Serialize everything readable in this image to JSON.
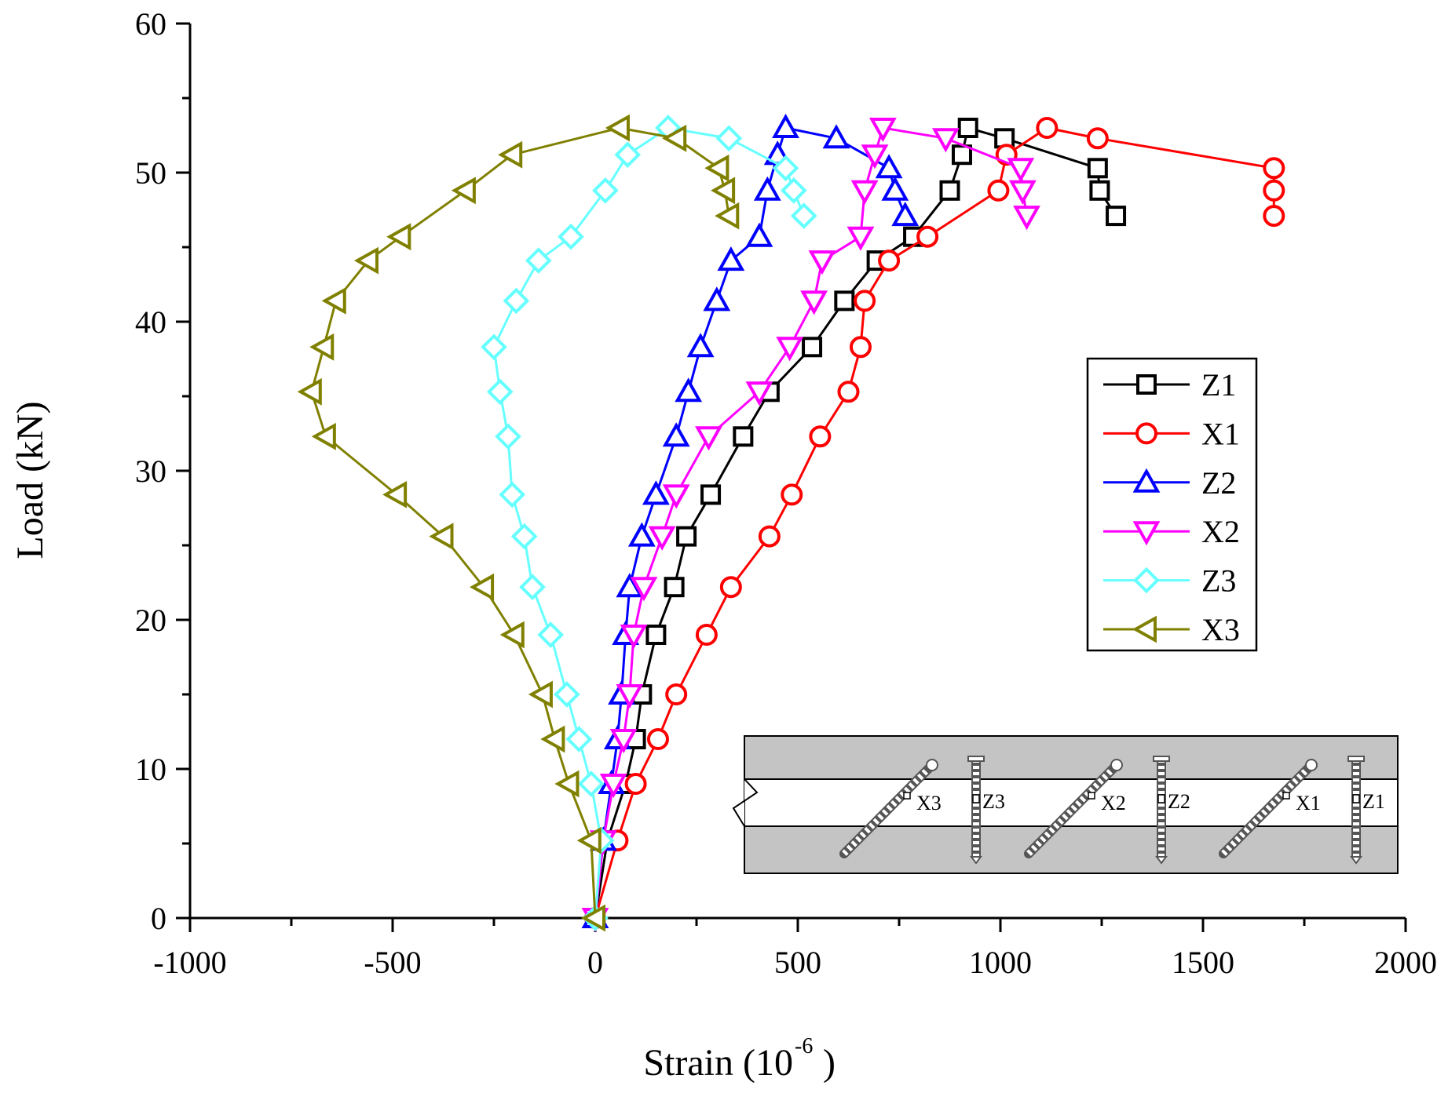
{
  "chart_data": {
    "type": "line",
    "title": "",
    "xlabel": "Strain (10",
    "xlabel_sup": "-6",
    "xlabel_suffix": ")",
    "ylabel": "Load (kN)",
    "xlim": [
      -1000,
      2000
    ],
    "ylim": [
      0,
      60
    ],
    "xticks": [
      -1000,
      -500,
      0,
      500,
      1000,
      1500,
      2000
    ],
    "yticks": [
      0,
      10,
      20,
      30,
      40,
      50,
      60
    ],
    "legend_position": "right",
    "grid": false,
    "series": [
      {
        "name": "Z1",
        "color": "#000000",
        "marker": "square",
        "points": [
          [
            0,
            0
          ],
          [
            30,
            5.2
          ],
          [
            75,
            9
          ],
          [
            100,
            12
          ],
          [
            115,
            15
          ],
          [
            150,
            19
          ],
          [
            195,
            22.2
          ],
          [
            225,
            25.6
          ],
          [
            285,
            28.4
          ],
          [
            365,
            32.3
          ],
          [
            430,
            35.3
          ],
          [
            535,
            38.3
          ],
          [
            615,
            41.4
          ],
          [
            695,
            44.1
          ],
          [
            785,
            45.7
          ],
          [
            875,
            48.8
          ],
          [
            905,
            51.2
          ],
          [
            920,
            53
          ],
          [
            1010,
            52.3
          ],
          [
            1240,
            50.3
          ],
          [
            1245,
            48.8
          ],
          [
            1285,
            47.1
          ]
        ]
      },
      {
        "name": "X1",
        "color": "#ff0000",
        "marker": "circle",
        "points": [
          [
            0,
            0
          ],
          [
            55,
            5.2
          ],
          [
            100,
            9
          ],
          [
            155,
            12
          ],
          [
            200,
            15
          ],
          [
            275,
            19
          ],
          [
            335,
            22.2
          ],
          [
            430,
            25.6
          ],
          [
            485,
            28.4
          ],
          [
            555,
            32.3
          ],
          [
            625,
            35.3
          ],
          [
            655,
            38.3
          ],
          [
            665,
            41.4
          ],
          [
            725,
            44.1
          ],
          [
            820,
            45.7
          ],
          [
            995,
            48.8
          ],
          [
            1015,
            51.2
          ],
          [
            1115,
            53
          ],
          [
            1240,
            52.3
          ],
          [
            1675,
            50.3
          ],
          [
            1675,
            48.8
          ],
          [
            1675,
            47.1
          ]
        ]
      },
      {
        "name": "Z2",
        "color": "#0000ff",
        "marker": "triangle-up",
        "points": [
          [
            0,
            0
          ],
          [
            20,
            5.2
          ],
          [
            40,
            9
          ],
          [
            55,
            12
          ],
          [
            65,
            15
          ],
          [
            75,
            19
          ],
          [
            85,
            22.2
          ],
          [
            115,
            25.6
          ],
          [
            150,
            28.4
          ],
          [
            200,
            32.3
          ],
          [
            230,
            35.3
          ],
          [
            260,
            38.3
          ],
          [
            300,
            41.4
          ],
          [
            335,
            44.1
          ],
          [
            405,
            45.7
          ],
          [
            425,
            48.8
          ],
          [
            450,
            51.2
          ],
          [
            470,
            53
          ],
          [
            595,
            52.3
          ],
          [
            725,
            50.3
          ],
          [
            740,
            48.8
          ],
          [
            765,
            47.1
          ]
        ]
      },
      {
        "name": "X2",
        "color": "#ff00ff",
        "marker": "triangle-down",
        "points": [
          [
            0,
            0
          ],
          [
            20,
            5.2
          ],
          [
            45,
            9
          ],
          [
            70,
            12
          ],
          [
            85,
            15
          ],
          [
            95,
            19
          ],
          [
            120,
            22.2
          ],
          [
            165,
            25.6
          ],
          [
            200,
            28.4
          ],
          [
            280,
            32.3
          ],
          [
            405,
            35.3
          ],
          [
            480,
            38.3
          ],
          [
            540,
            41.4
          ],
          [
            560,
            44.1
          ],
          [
            655,
            45.7
          ],
          [
            665,
            48.8
          ],
          [
            690,
            51.2
          ],
          [
            710,
            53
          ],
          [
            865,
            52.3
          ],
          [
            1050,
            50.3
          ],
          [
            1055,
            48.8
          ],
          [
            1065,
            47.1
          ]
        ]
      },
      {
        "name": "Z3",
        "color": "#66ffff",
        "marker": "diamond",
        "points": [
          [
            0,
            0
          ],
          [
            15,
            5.2
          ],
          [
            -10,
            9
          ],
          [
            -40,
            12
          ],
          [
            -70,
            15
          ],
          [
            -110,
            19
          ],
          [
            -155,
            22.2
          ],
          [
            -175,
            25.6
          ],
          [
            -205,
            28.4
          ],
          [
            -215,
            32.3
          ],
          [
            -235,
            35.3
          ],
          [
            -250,
            38.3
          ],
          [
            -195,
            41.4
          ],
          [
            -140,
            44.1
          ],
          [
            -60,
            45.7
          ],
          [
            25,
            48.8
          ],
          [
            80,
            51.2
          ],
          [
            180,
            53
          ],
          [
            330,
            52.3
          ],
          [
            470,
            50.3
          ],
          [
            490,
            48.8
          ],
          [
            515,
            47.1
          ]
        ]
      },
      {
        "name": "X3",
        "color": "#808000",
        "marker": "triangle-left",
        "points": [
          [
            0,
            0
          ],
          [
            -10,
            5.2
          ],
          [
            -65,
            9
          ],
          [
            -100,
            12
          ],
          [
            -130,
            15
          ],
          [
            -200,
            19
          ],
          [
            -275,
            22.2
          ],
          [
            -375,
            25.6
          ],
          [
            -490,
            28.4
          ],
          [
            -665,
            32.3
          ],
          [
            -700,
            35.3
          ],
          [
            -670,
            38.3
          ],
          [
            -640,
            41.4
          ],
          [
            -560,
            44.1
          ],
          [
            -480,
            45.7
          ],
          [
            -320,
            48.8
          ],
          [
            -205,
            51.2
          ],
          [
            60,
            53
          ],
          [
            200,
            52.3
          ],
          [
            305,
            50.3
          ],
          [
            320,
            48.8
          ],
          [
            330,
            47.1
          ]
        ]
      }
    ],
    "inset": {
      "labels": [
        "X3",
        "Z3",
        "X2",
        "Z2",
        "X1",
        "Z1"
      ]
    }
  }
}
